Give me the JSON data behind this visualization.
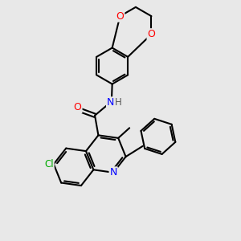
{
  "background_color": "#e8e8e8",
  "bond_color": "#000000",
  "atom_colors": {
    "O": "#ff0000",
    "N": "#0000ff",
    "Cl": "#00aa00",
    "C": "#000000",
    "H": "#555555"
  },
  "bond_width": 1.5,
  "figsize": [
    3.0,
    3.0
  ],
  "dpi": 100
}
